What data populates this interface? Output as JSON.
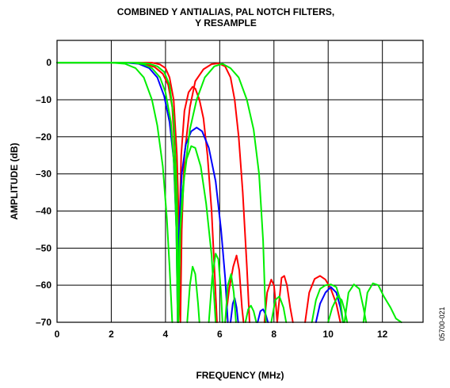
{
  "chart_data": {
    "type": "line",
    "title_lines": [
      "COMBINED Y ANTIALIAS, PAL NOTCH FILTERS,",
      "Y RESAMPLE"
    ],
    "xlabel": "FREQUENCY (MHz)",
    "ylabel": "AMPLITUDE (dB)",
    "xlim": [
      0,
      13.5
    ],
    "ylim": [
      -70,
      6
    ],
    "xticks": [
      0,
      2,
      4,
      6,
      8,
      10,
      12
    ],
    "yticks": [
      0,
      -10,
      -20,
      -30,
      -40,
      -50,
      -60,
      -70
    ],
    "xtick_labels": [
      "0",
      "2",
      "4",
      "6",
      "8",
      "10",
      "12"
    ],
    "ytick_labels": [
      "0",
      "–10",
      "–20",
      "–30",
      "–40",
      "–50",
      "–60",
      "–70"
    ],
    "grid": true,
    "figure_code": "05700-021",
    "series": [
      {
        "color": "#ff0000",
        "points": [
          [
            0,
            0
          ],
          [
            2,
            0
          ],
          [
            2.8,
            0
          ],
          [
            3.2,
            -0.3
          ],
          [
            3.6,
            -1.2
          ],
          [
            3.9,
            -3
          ],
          [
            4.1,
            -6
          ],
          [
            4.25,
            -12
          ],
          [
            4.35,
            -25
          ],
          [
            4.42,
            -50
          ],
          [
            4.46,
            -70
          ],
          [
            4.5,
            -50
          ],
          [
            4.58,
            -25
          ],
          [
            4.7,
            -13
          ],
          [
            4.85,
            -8
          ],
          [
            5.0,
            -6.5
          ],
          [
            5.1,
            -7
          ],
          [
            5.25,
            -10
          ],
          [
            5.4,
            -15
          ],
          [
            5.55,
            -25
          ],
          [
            5.7,
            -40
          ],
          [
            5.8,
            -55
          ],
          [
            5.9,
            -70
          ]
        ]
      },
      {
        "color": "#ff0000",
        "points": [
          [
            0,
            0
          ],
          [
            3,
            0
          ],
          [
            3.5,
            0
          ],
          [
            3.8,
            -0.5
          ],
          [
            4.0,
            -1.5
          ],
          [
            4.15,
            -4
          ],
          [
            4.3,
            -10
          ],
          [
            4.42,
            -25
          ],
          [
            4.5,
            -45
          ],
          [
            4.55,
            -70
          ],
          [
            4.6,
            -45
          ],
          [
            4.7,
            -25
          ],
          [
            4.9,
            -12
          ],
          [
            5.1,
            -5
          ],
          [
            5.4,
            -1.8
          ],
          [
            5.7,
            -0.4
          ],
          [
            5.95,
            -0.2
          ],
          [
            6.2,
            -1
          ],
          [
            6.4,
            -4
          ],
          [
            6.55,
            -10
          ],
          [
            6.7,
            -20
          ],
          [
            6.85,
            -35
          ],
          [
            7.0,
            -55
          ],
          [
            7.1,
            -70
          ]
        ]
      },
      {
        "color": "#ff0000",
        "points": [
          [
            6.2,
            -70
          ],
          [
            6.35,
            -61
          ],
          [
            6.5,
            -55
          ],
          [
            6.62,
            -52
          ],
          [
            6.72,
            -56
          ],
          [
            6.82,
            -66
          ],
          [
            6.88,
            -70
          ]
        ]
      },
      {
        "color": "#ff0000",
        "points": [
          [
            7.65,
            -70
          ],
          [
            7.75,
            -62
          ],
          [
            7.9,
            -58.5
          ],
          [
            8.0,
            -60
          ],
          [
            8.08,
            -66
          ],
          [
            8.12,
            -70
          ],
          [
            8.17,
            -66
          ],
          [
            8.28,
            -58
          ],
          [
            8.38,
            -57.5
          ],
          [
            8.48,
            -60
          ],
          [
            8.6,
            -66
          ],
          [
            8.7,
            -70
          ]
        ]
      },
      {
        "color": "#ff0000",
        "points": [
          [
            9.15,
            -70
          ],
          [
            9.3,
            -62
          ],
          [
            9.5,
            -58.3
          ],
          [
            9.7,
            -57.5
          ],
          [
            9.9,
            -58.5
          ],
          [
            10.1,
            -61
          ],
          [
            10.3,
            -65
          ],
          [
            10.45,
            -70
          ]
        ]
      },
      {
        "color": "#0000ff",
        "points": [
          [
            0,
            0
          ],
          [
            2.5,
            0
          ],
          [
            3.0,
            -0.3
          ],
          [
            3.4,
            -1.5
          ],
          [
            3.7,
            -4
          ],
          [
            3.95,
            -9
          ],
          [
            4.15,
            -16
          ],
          [
            4.3,
            -26
          ],
          [
            4.4,
            -45
          ],
          [
            4.45,
            -70
          ],
          [
            4.5,
            -45
          ],
          [
            4.6,
            -30
          ],
          [
            4.75,
            -22
          ],
          [
            4.95,
            -18.5
          ],
          [
            5.15,
            -17.5
          ],
          [
            5.35,
            -18.5
          ],
          [
            5.6,
            -23
          ],
          [
            5.85,
            -32
          ],
          [
            6.05,
            -45
          ],
          [
            6.2,
            -58
          ],
          [
            6.3,
            -70
          ]
        ]
      },
      {
        "color": "#0000ff",
        "points": [
          [
            6.4,
            -70
          ],
          [
            6.48,
            -65
          ],
          [
            6.55,
            -63.5
          ],
          [
            6.62,
            -66
          ],
          [
            6.68,
            -70
          ]
        ]
      },
      {
        "color": "#0000ff",
        "points": [
          [
            7.4,
            -70
          ],
          [
            7.5,
            -67
          ],
          [
            7.6,
            -66.5
          ],
          [
            7.7,
            -68
          ],
          [
            7.78,
            -70
          ]
        ]
      },
      {
        "color": "#0000ff",
        "points": [
          [
            9.55,
            -70
          ],
          [
            9.7,
            -65
          ],
          [
            9.9,
            -62
          ],
          [
            10.1,
            -60.5
          ],
          [
            10.3,
            -62
          ],
          [
            10.45,
            -66
          ],
          [
            10.55,
            -70
          ]
        ]
      },
      {
        "color": "#00ee00",
        "points": [
          [
            0,
            0
          ],
          [
            2,
            0
          ],
          [
            2.5,
            -0.3
          ],
          [
            2.9,
            -1.5
          ],
          [
            3.2,
            -4
          ],
          [
            3.5,
            -10
          ],
          [
            3.7,
            -17
          ],
          [
            3.9,
            -28
          ],
          [
            4.05,
            -42
          ],
          [
            4.15,
            -55
          ],
          [
            4.25,
            -70
          ]
        ]
      },
      {
        "color": "#00ee00",
        "points": [
          [
            0,
            0
          ],
          [
            2.8,
            0
          ],
          [
            3.2,
            -0.5
          ],
          [
            3.5,
            -1.5
          ],
          [
            3.8,
            -4
          ],
          [
            4.0,
            -8
          ],
          [
            4.2,
            -16
          ],
          [
            4.32,
            -28
          ],
          [
            4.4,
            -45
          ],
          [
            4.45,
            -70
          ],
          [
            4.52,
            -48
          ],
          [
            4.62,
            -35
          ],
          [
            4.78,
            -26
          ],
          [
            4.95,
            -22.5
          ],
          [
            5.1,
            -23
          ],
          [
            5.3,
            -28
          ],
          [
            5.5,
            -38
          ],
          [
            5.7,
            -52
          ],
          [
            5.85,
            -70
          ]
        ]
      },
      {
        "color": "#00ee00",
        "points": [
          [
            0,
            0
          ],
          [
            3,
            0
          ],
          [
            3.4,
            -0.3
          ],
          [
            3.7,
            -1
          ],
          [
            3.95,
            -2.5
          ],
          [
            4.15,
            -6
          ],
          [
            4.3,
            -15
          ],
          [
            4.42,
            -35
          ],
          [
            4.48,
            -70
          ],
          [
            4.55,
            -45
          ],
          [
            4.7,
            -30
          ],
          [
            4.9,
            -18
          ],
          [
            5.15,
            -10
          ],
          [
            5.45,
            -4
          ],
          [
            5.8,
            -1
          ],
          [
            6.1,
            -0.3
          ],
          [
            6.4,
            -1.5
          ],
          [
            6.7,
            -4
          ],
          [
            7.0,
            -10
          ],
          [
            7.25,
            -18
          ],
          [
            7.45,
            -30
          ],
          [
            7.6,
            -48
          ],
          [
            7.7,
            -70
          ]
        ]
      },
      {
        "color": "#00ee00",
        "points": [
          [
            4.8,
            -70
          ],
          [
            4.9,
            -60
          ],
          [
            5.0,
            -55
          ],
          [
            5.1,
            -57
          ],
          [
            5.2,
            -65
          ],
          [
            5.25,
            -70
          ]
        ]
      },
      {
        "color": "#00ee00",
        "points": [
          [
            5.6,
            -70
          ],
          [
            5.72,
            -58
          ],
          [
            5.85,
            -51.5
          ],
          [
            5.95,
            -53
          ],
          [
            6.05,
            -62
          ],
          [
            6.1,
            -70
          ]
        ]
      },
      {
        "color": "#00ee00",
        "points": [
          [
            6.2,
            -70
          ],
          [
            6.3,
            -60
          ],
          [
            6.42,
            -57
          ],
          [
            6.52,
            -62
          ],
          [
            6.6,
            -70
          ]
        ]
      },
      {
        "color": "#00ee00",
        "points": [
          [
            6.95,
            -70
          ],
          [
            7.05,
            -66.5
          ],
          [
            7.15,
            -65.5
          ],
          [
            7.25,
            -67
          ],
          [
            7.35,
            -70
          ]
        ]
      },
      {
        "color": "#00ee00",
        "points": [
          [
            7.9,
            -70
          ],
          [
            8.05,
            -64
          ],
          [
            8.2,
            -63
          ],
          [
            8.35,
            -66
          ],
          [
            8.45,
            -70
          ]
        ]
      },
      {
        "color": "#00ee00",
        "points": [
          [
            9.4,
            -70
          ],
          [
            9.55,
            -64
          ],
          [
            9.7,
            -61
          ],
          [
            9.9,
            -60
          ],
          [
            10.1,
            -59.8
          ],
          [
            10.3,
            -60.5
          ],
          [
            10.45,
            -64
          ],
          [
            10.55,
            -70
          ]
        ]
      },
      {
        "color": "#00ee00",
        "points": [
          [
            10.0,
            -70
          ],
          [
            10.15,
            -66
          ],
          [
            10.35,
            -63
          ],
          [
            10.5,
            -64
          ],
          [
            10.62,
            -67
          ],
          [
            10.7,
            -70
          ]
        ]
      },
      {
        "color": "#00ee00",
        "points": [
          [
            10.6,
            -70
          ],
          [
            10.75,
            -62
          ],
          [
            10.95,
            -59.8
          ],
          [
            11.15,
            -61
          ],
          [
            11.3,
            -66
          ],
          [
            11.4,
            -70
          ]
        ]
      },
      {
        "color": "#00ee00",
        "points": [
          [
            11.3,
            -70
          ],
          [
            11.45,
            -62
          ],
          [
            11.65,
            -59.5
          ],
          [
            11.85,
            -60
          ],
          [
            12.05,
            -63
          ],
          [
            12.3,
            -66
          ],
          [
            12.5,
            -69
          ],
          [
            12.7,
            -70
          ]
        ]
      }
    ]
  }
}
